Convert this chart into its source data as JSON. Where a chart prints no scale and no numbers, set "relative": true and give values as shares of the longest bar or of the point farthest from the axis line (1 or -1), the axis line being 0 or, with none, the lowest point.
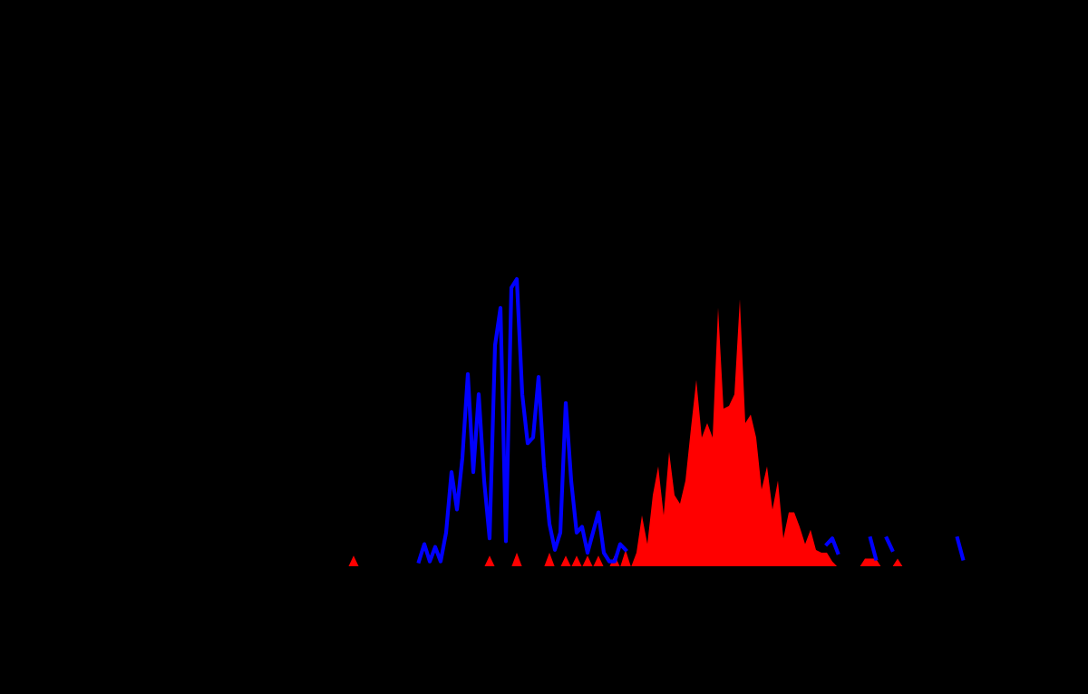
{
  "chart_data": {
    "type": "area",
    "relative": true,
    "categories": [
      null,
      null,
      null,
      null,
      null,
      null,
      null,
      null,
      null,
      null,
      null,
      null,
      null,
      null,
      null,
      null,
      null,
      null,
      null,
      null,
      null,
      null,
      null,
      null,
      null,
      null,
      null,
      null,
      null,
      null,
      null,
      null,
      null,
      null,
      null,
      null,
      null,
      null,
      null,
      null,
      null,
      null,
      null,
      null,
      null,
      null,
      null,
      null,
      null,
      null,
      null,
      null,
      null,
      null,
      null,
      null,
      null,
      null,
      null,
      null,
      null,
      null,
      null,
      null,
      null,
      null,
      null,
      null,
      null,
      null,
      null,
      null,
      null,
      null,
      null,
      null,
      null,
      null,
      null,
      null,
      null,
      null,
      null,
      null,
      null,
      null,
      null,
      null,
      null,
      null,
      null,
      null,
      null,
      null,
      null,
      null,
      null,
      null,
      null,
      null,
      null,
      null,
      null,
      null,
      null,
      null,
      null,
      null,
      null,
      null,
      null,
      null,
      null,
      null,
      null
    ],
    "series": [
      {
        "type": "line",
        "color": "#0000ff",
        "values": [
          null,
          null,
          null,
          null,
          null,
          null,
          null,
          null,
          null,
          null,
          null,
          null,
          null,
          0.02,
          0.08,
          0.02,
          0.07,
          0.02,
          0.12,
          0.33,
          0.2,
          0.38,
          0.67,
          0.33,
          0.6,
          0.3,
          0.1,
          0.77,
          0.9,
          0.09,
          0.97,
          1.0,
          0.6,
          0.43,
          0.45,
          0.66,
          0.35,
          0.15,
          0.06,
          0.12,
          0.57,
          0.3,
          0.12,
          0.14,
          0.05,
          0.12,
          0.19,
          0.05,
          0.02,
          0.02,
          0.08,
          0.06,
          null,
          null,
          null,
          null,
          null,
          null,
          null,
          null,
          null,
          null,
          null,
          null,
          null,
          null,
          null,
          null,
          null,
          null,
          null,
          null,
          null,
          null,
          null,
          null,
          null,
          null,
          null,
          null,
          null,
          null,
          null,
          null,
          null,
          null,
          null,
          null,
          0.08,
          0.1,
          0.05,
          null,
          null,
          null,
          null,
          null,
          0.1,
          0.03,
          null,
          0.1,
          0.06,
          null,
          null,
          null,
          null,
          null,
          null,
          null,
          null,
          null,
          null,
          null,
          0.1,
          0.03,
          null
        ]
      },
      {
        "color": "#ff0000",
        "values": [
          0,
          0.04,
          0,
          0,
          0,
          0,
          0,
          0,
          0,
          0,
          0,
          0,
          0,
          0,
          0,
          0,
          0,
          0,
          0,
          0,
          0,
          0,
          0,
          0,
          0,
          0,
          0.04,
          0,
          0,
          0,
          0,
          0.05,
          0,
          0,
          0,
          0,
          0,
          0.05,
          0,
          0,
          0.04,
          0,
          0.04,
          0,
          0.04,
          0,
          0.04,
          0,
          0,
          0.04,
          0,
          0.06,
          0,
          0.05,
          0.18,
          0.08,
          0.25,
          0.35,
          0.18,
          0.4,
          0.25,
          0.22,
          0.3,
          0.48,
          0.65,
          0.45,
          0.5,
          0.45,
          0.9,
          0.55,
          0.56,
          0.6,
          0.93,
          0.5,
          0.53,
          0.45,
          0.27,
          0.35,
          0.2,
          0.3,
          0.1,
          0.19,
          0.19,
          0.14,
          0.08,
          0.13,
          0.06,
          0.05,
          0.05,
          0.02,
          0,
          0,
          0,
          0,
          0,
          0.03,
          0.03,
          0.03,
          0,
          0,
          0,
          0.03,
          0,
          0,
          0,
          0,
          0,
          0,
          0,
          0,
          0,
          0,
          0,
          0,
          0
        ]
      }
    ]
  }
}
